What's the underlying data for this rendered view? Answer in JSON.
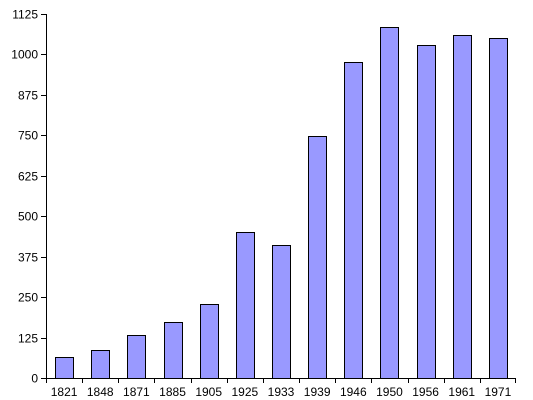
{
  "chart_data": {
    "type": "bar",
    "title": "",
    "xlabel": "",
    "ylabel": "",
    "categories": [
      "1821",
      "1848",
      "1871",
      "1885",
      "1905",
      "1925",
      "1933",
      "1939",
      "1946",
      "1950",
      "1956",
      "1961",
      "1971"
    ],
    "values": [
      65,
      85,
      133,
      173,
      228,
      450,
      410,
      748,
      978,
      1085,
      1028,
      1060,
      1052
    ],
    "ylim": [
      0,
      1125
    ],
    "yticks": [
      "0",
      "125",
      "250",
      "375",
      "500",
      "625",
      "750",
      "875",
      "1000",
      "1125"
    ],
    "grid": false,
    "legend": "none",
    "colors": {
      "bar_fill": "#9999ff",
      "bar_stroke": "#000000",
      "axis": "#000000",
      "text": "#000000"
    }
  }
}
